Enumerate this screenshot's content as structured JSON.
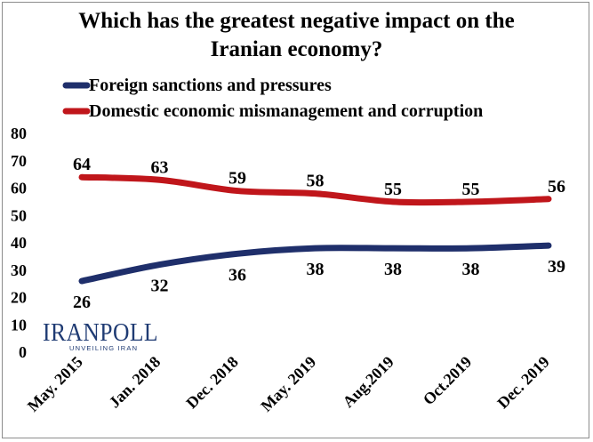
{
  "chart_data": {
    "type": "line",
    "title": [
      "Which has the greatest negative impact on the",
      "Iranian economy?"
    ],
    "categories": [
      "May. 2015",
      "Jan. 2018",
      "Dec. 2018",
      "May. 2019",
      "Aug.2019",
      "Oct.2019",
      "Dec. 2019"
    ],
    "series": [
      {
        "name": "Foreign sanctions and pressures",
        "color": "#1f2f6b",
        "values": [
          26,
          32,
          36,
          38,
          38,
          38,
          39
        ]
      },
      {
        "name": "Domestic economic mismanagement and corruption",
        "color": "#c0161b",
        "values": [
          64,
          63,
          59,
          58,
          55,
          55,
          56
        ]
      }
    ],
    "ylim": [
      0,
      80
    ],
    "yticks": [
      0,
      10,
      20,
      30,
      40,
      50,
      60,
      70,
      80
    ],
    "grid": false,
    "legend_position": "top-left"
  },
  "logo": {
    "name": "IRANPOLL",
    "tagline": "UNVEILING IRAN",
    "color": "#1f3b73"
  }
}
